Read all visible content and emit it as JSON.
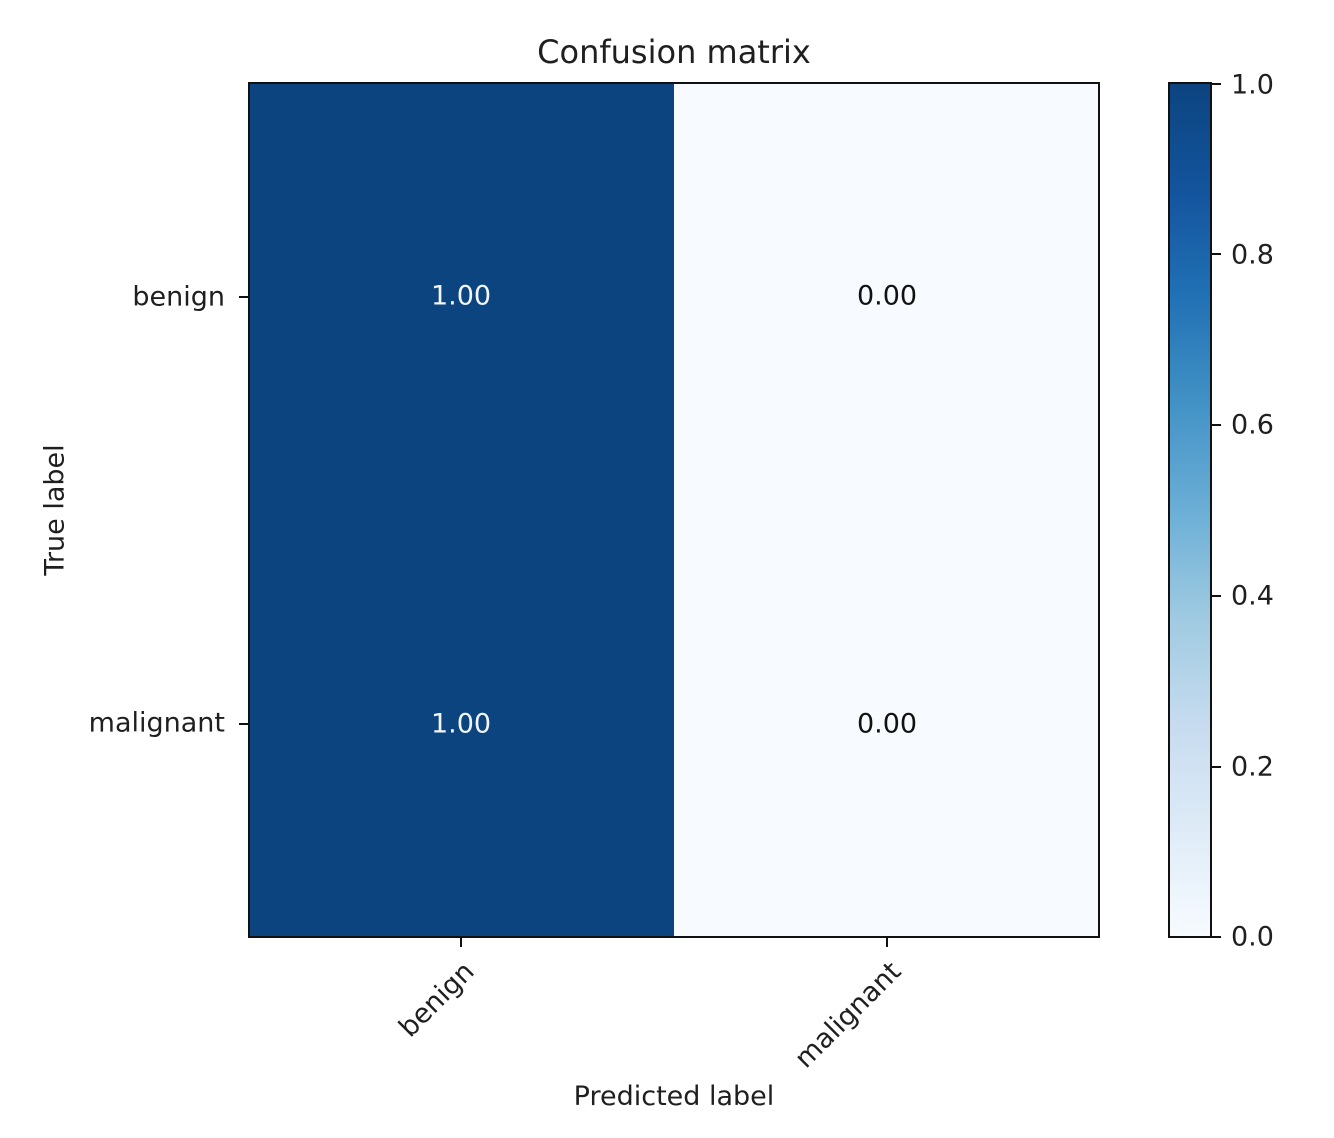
{
  "chart_data": {
    "type": "heatmap",
    "title": "Confusion matrix",
    "xlabel": "Predicted label",
    "ylabel": "True label",
    "x_categories": [
      "benign",
      "malignant"
    ],
    "y_categories": [
      "benign",
      "malignant"
    ],
    "rows": [
      {
        "true_label": "benign",
        "values": [
          1.0,
          0.0
        ],
        "labels": [
          "1.00",
          "0.00"
        ]
      },
      {
        "true_label": "malignant",
        "values": [
          1.0,
          0.0
        ],
        "labels": [
          "1.00",
          "0.00"
        ]
      }
    ],
    "value_range": [
      0.0,
      1.0
    ],
    "colormap": "Blues",
    "colorbar_ticks": [
      "1.0",
      "0.8",
      "0.6",
      "0.4",
      "0.2",
      "0.0"
    ],
    "colorbar_position": "right",
    "grid": false,
    "colors": {
      "value_high": "#0c4480",
      "value_low": "#f7fbff",
      "axes_border": "#111111",
      "text": "#1f1f1f",
      "cell_text_on_dark": "#f2f6fa",
      "cell_text_on_light": "#111111"
    }
  }
}
